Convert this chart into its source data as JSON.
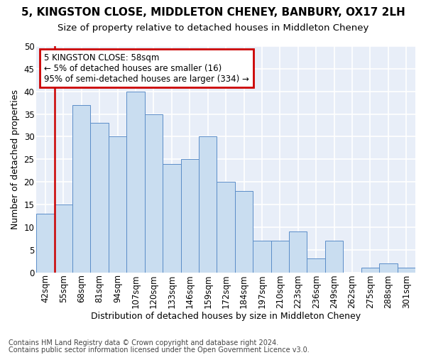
{
  "title1": "5, KINGSTON CLOSE, MIDDLETON CHENEY, BANBURY, OX17 2LH",
  "title2": "Size of property relative to detached houses in Middleton Cheney",
  "xlabel": "Distribution of detached houses by size in Middleton Cheney",
  "ylabel": "Number of detached properties",
  "footnote1": "Contains HM Land Registry data © Crown copyright and database right 2024.",
  "footnote2": "Contains public sector information licensed under the Open Government Licence v3.0.",
  "annotation_line1": "5 KINGSTON CLOSE: 58sqm",
  "annotation_line2": "← 5% of detached houses are smaller (16)",
  "annotation_line3": "95% of semi-detached houses are larger (334) →",
  "bar_labels": [
    "42sqm",
    "55sqm",
    "68sqm",
    "81sqm",
    "94sqm",
    "107sqm",
    "120sqm",
    "133sqm",
    "146sqm",
    "159sqm",
    "172sqm",
    "184sqm",
    "197sqm",
    "210sqm",
    "223sqm",
    "236sqm",
    "249sqm",
    "262sqm",
    "275sqm",
    "288sqm",
    "301sqm"
  ],
  "bar_values": [
    13,
    15,
    37,
    33,
    30,
    40,
    35,
    24,
    25,
    30,
    20,
    18,
    7,
    7,
    9,
    3,
    7,
    0,
    1,
    2,
    1
  ],
  "bar_color": "#c9ddf0",
  "bar_edge_color": "#5b8dc8",
  "vline_color": "#cc0000",
  "annotation_box_color": "#cc0000",
  "bg_color": "#e8eef8",
  "fig_bg_color": "#ffffff",
  "ylim": [
    0,
    50
  ],
  "yticks": [
    0,
    5,
    10,
    15,
    20,
    25,
    30,
    35,
    40,
    45,
    50
  ],
  "grid_color": "#ffffff",
  "title1_fontsize": 11,
  "title2_fontsize": 9.5,
  "xlabel_fontsize": 9,
  "ylabel_fontsize": 9,
  "tick_fontsize": 8.5,
  "annot_fontsize": 8.5,
  "footnote_fontsize": 7
}
